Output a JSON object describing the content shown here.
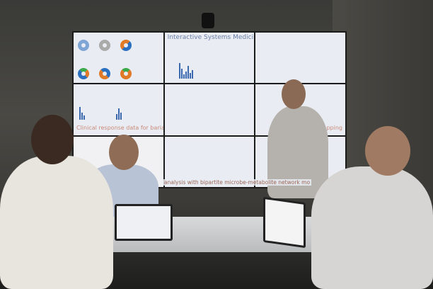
{
  "screen": {
    "panel_title_main": "Interactive Systems Medicine",
    "panel_title_clinical": "Clinical response data for bariatric surgery",
    "panel_caption_network": "analysis with bipartite microbe-metabolite network mo",
    "panel_caption_mapping": "mapping"
  },
  "colors": {
    "accent_blue": "#2a6fc0",
    "accent_orange": "#e07a26",
    "accent_green": "#3aaa4a",
    "accent_red": "#d9363b"
  }
}
